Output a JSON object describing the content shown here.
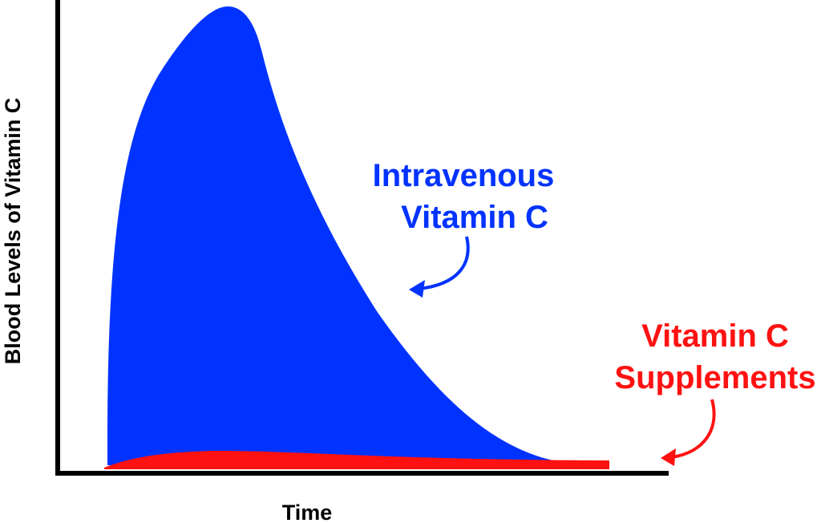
{
  "chart_data": {
    "type": "area",
    "title": "",
    "xlabel": "Time",
    "ylabel": "Blood  Levels of Vitamin C",
    "grid": false,
    "legend": "none",
    "series": [
      {
        "label_lines": [
          "Intravenous",
          "Vitamin C"
        ],
        "color": "#0033ff",
        "peak_relative": 1.0,
        "shape": "sharp rise to high peak, then long decay toward baseline"
      },
      {
        "label_lines": [
          "Vitamin C",
          "Supplements"
        ],
        "color": "#ff1111",
        "peak_relative": 0.04,
        "shape": "low, flat hump that stays near baseline"
      }
    ]
  }
}
